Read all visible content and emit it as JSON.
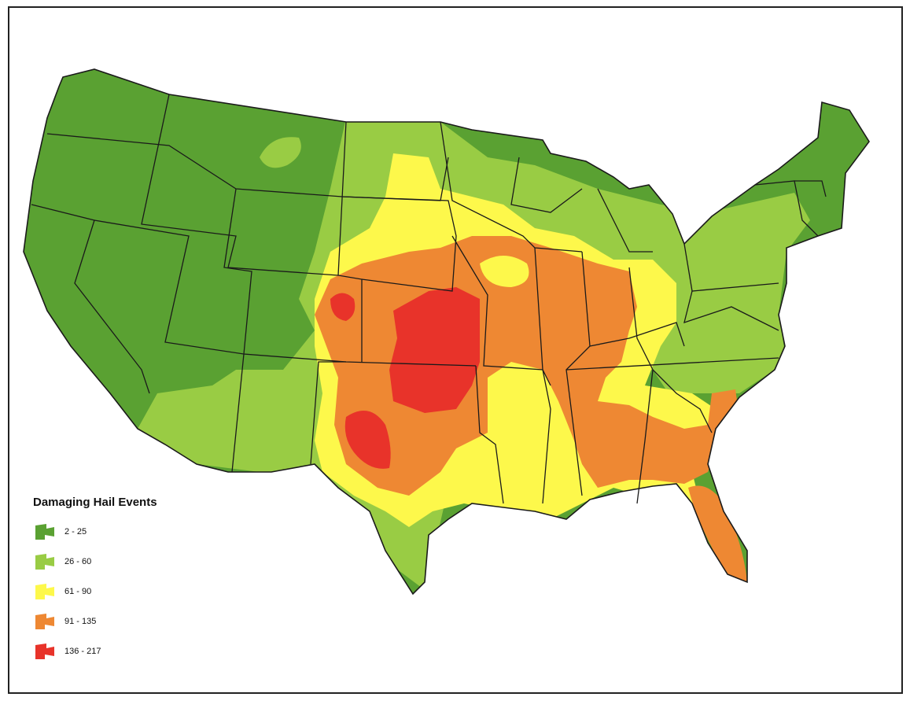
{
  "legend": {
    "title": "Damaging Hail Events",
    "classes": [
      {
        "label": "2 - 25",
        "color": "#5aa132"
      },
      {
        "label": "26 - 60",
        "color": "#99cc44"
      },
      {
        "label": "61 - 90",
        "color": "#fdf84b"
      },
      {
        "label": "91 - 135",
        "color": "#ee8833"
      },
      {
        "label": "136 - 217",
        "color": "#e8332a"
      }
    ]
  },
  "colors": {
    "border": "#222222",
    "state_lines": "#1a1a1a",
    "background": "#ffffff"
  }
}
